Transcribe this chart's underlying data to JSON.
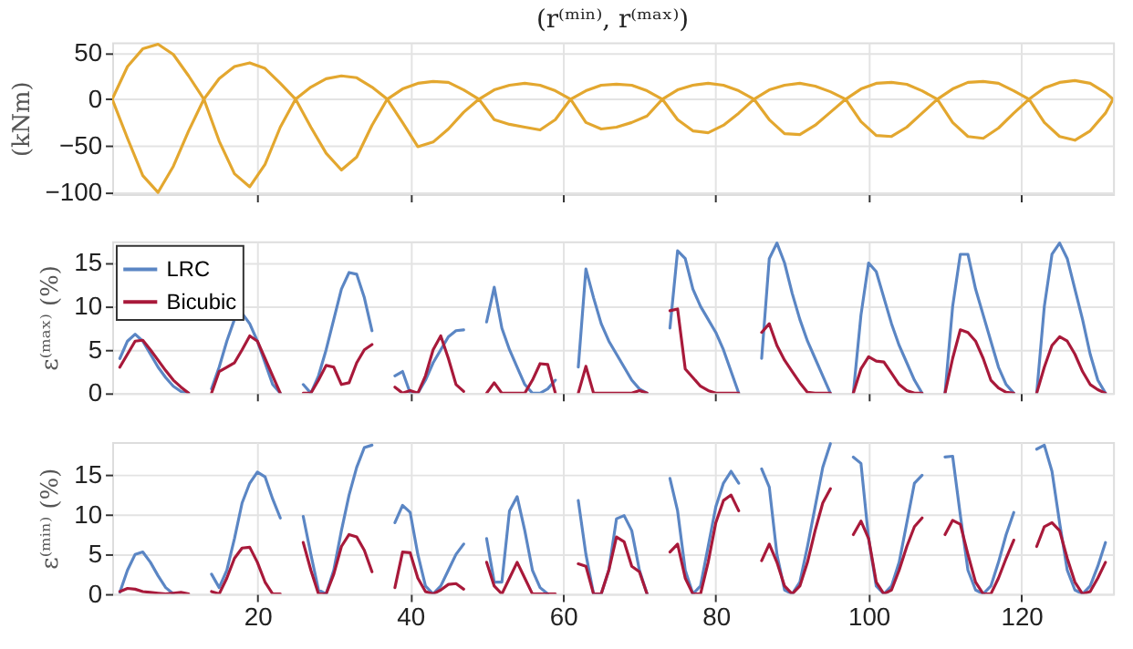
{
  "chart_data": [
    {
      "type": "line",
      "title": "(r⁽ᵐⁱⁿ⁾, r⁽ᵐᵃˣ⁾)",
      "ylabel": "(kNm)",
      "xlim": [
        1,
        132
      ],
      "xticks": [
        20,
        40,
        60,
        80,
        100,
        120
      ],
      "ylim": [
        -102,
        61
      ],
      "yticks": [
        -100,
        -50,
        0,
        50
      ],
      "grid": true,
      "tick_labels": "y",
      "x": [
        1,
        3,
        5,
        7,
        9,
        11,
        13,
        15,
        17,
        19,
        21,
        23,
        25,
        27,
        29,
        31,
        33,
        35,
        37,
        39,
        41,
        43,
        45,
        47,
        49,
        51,
        53,
        55,
        57,
        59,
        61,
        63,
        65,
        67,
        69,
        71,
        73,
        75,
        77,
        79,
        81,
        83,
        85,
        87,
        89,
        91,
        93,
        95,
        97,
        99,
        101,
        103,
        105,
        107,
        109,
        111,
        113,
        115,
        117,
        119,
        121,
        123,
        125,
        127,
        129,
        131,
        132
      ],
      "series": [
        {
          "color": "#e3a72f",
          "values": [
            0,
            35,
            54,
            59,
            48,
            25,
            0,
            22,
            35,
            39,
            33,
            17,
            0,
            13,
            22,
            25,
            23,
            13,
            0,
            11,
            17,
            19,
            18,
            10,
            0,
            10,
            15,
            17,
            15,
            9,
            0,
            9,
            15,
            16,
            15,
            9,
            0,
            10,
            15,
            17,
            15,
            9,
            0,
            10,
            15,
            17,
            14,
            8,
            0,
            11,
            17,
            18,
            16,
            9,
            0,
            11,
            18,
            19,
            17,
            9,
            0,
            12,
            18,
            20,
            17,
            7,
            0
          ]
        },
        {
          "color": "#e3a72f",
          "values": [
            0,
            -42,
            -82,
            -100,
            -72,
            -34,
            0,
            -45,
            -80,
            -94,
            -70,
            -30,
            0,
            -30,
            -58,
            -76,
            -62,
            -28,
            0,
            -25,
            -51,
            -46,
            -32,
            -14,
            0,
            -22,
            -27,
            -30,
            -33,
            -22,
            0,
            -25,
            -32,
            -30,
            -25,
            -18,
            0,
            -22,
            -34,
            -36,
            -28,
            -15,
            0,
            -22,
            -37,
            -38,
            -28,
            -14,
            0,
            -24,
            -39,
            -40,
            -30,
            -15,
            0,
            -25,
            -40,
            -42,
            -31,
            -15,
            0,
            -25,
            -40,
            -44,
            -34,
            -15,
            0
          ]
        }
      ]
    },
    {
      "type": "line",
      "ylabel": "ε⁽ᵐᵃˣ⁾ (%)",
      "xlim": [
        1,
        132
      ],
      "xticks": [
        20,
        40,
        60,
        80,
        100,
        120
      ],
      "ylim": [
        0,
        17.5
      ],
      "yticks": [
        0,
        5,
        10,
        15
      ],
      "grid": true,
      "tick_labels": "y",
      "legend": "top left",
      "x": [
        2,
        3,
        4,
        5,
        6,
        7,
        8,
        9,
        10,
        11,
        12,
        13,
        14,
        15,
        16,
        17,
        18,
        19,
        20,
        21,
        22,
        23,
        24,
        25,
        26,
        27,
        28,
        29,
        30,
        31,
        32,
        33,
        34,
        35,
        36,
        37,
        38,
        39,
        40,
        41,
        42,
        43,
        44,
        45,
        46,
        47,
        48,
        49,
        50,
        51,
        52,
        53,
        54,
        55,
        56,
        57,
        58,
        59,
        60,
        61,
        62,
        63,
        64,
        65,
        66,
        67,
        68,
        69,
        70,
        71,
        72,
        73,
        74,
        75,
        76,
        77,
        78,
        79,
        80,
        81,
        82,
        83,
        84,
        85,
        86,
        87,
        88,
        89,
        90,
        91,
        92,
        93,
        94,
        95,
        96,
        97,
        98,
        99,
        100,
        101,
        102,
        103,
        104,
        105,
        106,
        107,
        108,
        109,
        110,
        111,
        112,
        113,
        114,
        115,
        116,
        117,
        118,
        119,
        120,
        121,
        122,
        123,
        124,
        125,
        126,
        127,
        128,
        129,
        130,
        131
      ],
      "series": [
        {
          "name": "LRC",
          "color": "#5b86c4",
          "values": [
            4,
            6,
            6.8,
            6,
            4.5,
            3,
            1.8,
            0.8,
            0.2,
            0,
            null,
            null,
            0.5,
            3,
            6,
            8.5,
            9.2,
            8,
            6,
            3.5,
            1,
            0,
            null,
            null,
            1,
            0,
            2,
            5,
            8.5,
            12,
            13.9,
            13.7,
            11,
            7.2,
            null,
            null,
            2,
            2.5,
            0,
            0,
            1.5,
            3.5,
            5,
            6.5,
            7.2,
            7.3,
            null,
            null,
            8.2,
            12.2,
            7.5,
            5,
            3,
            1,
            0,
            0,
            0.5,
            1.5,
            null,
            null,
            3,
            14.3,
            11,
            8,
            6,
            4.5,
            3,
            1.5,
            0.5,
            0,
            null,
            null,
            7.5,
            16.4,
            15.5,
            12,
            10,
            8.5,
            7,
            5,
            2.5,
            0,
            null,
            null,
            4,
            15.5,
            17.3,
            15,
            11.5,
            8.5,
            6,
            4,
            2,
            0,
            null,
            null,
            0,
            9,
            15,
            14,
            11,
            8,
            5.5,
            3.5,
            1.5,
            0,
            null,
            null,
            0,
            10,
            16,
            16,
            12,
            9,
            6,
            3,
            1,
            0,
            null,
            null,
            0,
            10,
            16,
            17.3,
            15.5,
            12,
            8.5,
            4.5,
            1.5,
            0
          ]
        },
        {
          "name": "Bicubic",
          "color": "#a8193a",
          "values": [
            3,
            4.5,
            6,
            6.1,
            5,
            3.8,
            2.6,
            1.5,
            0.7,
            0,
            null,
            null,
            0,
            2.5,
            3,
            3.5,
            5,
            6.6,
            6,
            4,
            2,
            0,
            null,
            null,
            0,
            0,
            1.5,
            3.2,
            3,
            1,
            1.2,
            3.5,
            5,
            5.6,
            null,
            null,
            0.7,
            0,
            0.3,
            0,
            2,
            5,
            6.6,
            4,
            1,
            0.2,
            null,
            null,
            0,
            1.2,
            0,
            0,
            0,
            0,
            1.5,
            3.4,
            3.3,
            0,
            null,
            null,
            0,
            3.1,
            0,
            0,
            0,
            0,
            0,
            0,
            0.3,
            0,
            null,
            null,
            9.5,
            9.7,
            2.8,
            1.8,
            0.8,
            0.3,
            0,
            0,
            0,
            0,
            null,
            null,
            7,
            8,
            5.5,
            3.8,
            2.5,
            1.2,
            0.1,
            0,
            0,
            0,
            null,
            null,
            0,
            2.8,
            4.2,
            3.7,
            3.6,
            2.3,
            1,
            0.3,
            0,
            0,
            null,
            null,
            0,
            4,
            7.3,
            7,
            6,
            4,
            1.5,
            0.6,
            0.1,
            0,
            null,
            null,
            0,
            3,
            5.5,
            6.5,
            6,
            4.5,
            2.5,
            1,
            0.4,
            0
          ]
        }
      ]
    },
    {
      "type": "line",
      "ylabel": "ε⁽ᵐⁱⁿ⁾ (%)",
      "xlim": [
        1,
        132
      ],
      "xticks": [
        20,
        40,
        60,
        80,
        100,
        120
      ],
      "ylim": [
        0,
        19.2
      ],
      "yticks": [
        0,
        5,
        10,
        15
      ],
      "grid": true,
      "x": [
        2,
        3,
        4,
        5,
        6,
        7,
        8,
        9,
        10,
        11,
        12,
        13,
        14,
        15,
        16,
        17,
        18,
        19,
        20,
        21,
        22,
        23,
        24,
        25,
        26,
        27,
        28,
        29,
        30,
        31,
        32,
        33,
        34,
        35,
        36,
        37,
        38,
        39,
        40,
        41,
        42,
        43,
        44,
        45,
        46,
        47,
        48,
        49,
        50,
        51,
        52,
        53,
        54,
        55,
        56,
        57,
        58,
        59,
        60,
        61,
        62,
        63,
        64,
        65,
        66,
        67,
        68,
        69,
        70,
        71,
        72,
        73,
        74,
        75,
        76,
        77,
        78,
        79,
        80,
        81,
        82,
        83,
        84,
        85,
        86,
        87,
        88,
        89,
        90,
        91,
        92,
        93,
        94,
        95,
        96,
        97,
        98,
        99,
        100,
        101,
        102,
        103,
        104,
        105,
        106,
        107,
        108,
        109,
        110,
        111,
        112,
        113,
        114,
        115,
        116,
        117,
        118,
        119,
        120,
        121,
        122,
        123,
        124,
        125,
        126,
        127,
        128,
        129,
        130,
        131
      ],
      "series": [
        {
          "color": "#5b86c4",
          "values": [
            0.2,
            3,
            5,
            5.3,
            4,
            2.3,
            0.8,
            0,
            null,
            null,
            null,
            null,
            2.5,
            0.8,
            3,
            7,
            11.5,
            14,
            15.4,
            14.8,
            12,
            9.6,
            null,
            null,
            9.8,
            5,
            0.5,
            0,
            3,
            8,
            12.5,
            16,
            18.5,
            18.8,
            null,
            null,
            9,
            11.2,
            10.3,
            5,
            1,
            0,
            1,
            3,
            5,
            6.3,
            null,
            null,
            7,
            1.5,
            1.5,
            10.5,
            12.3,
            8,
            3,
            0.8,
            0,
            null,
            null,
            null,
            11.8,
            5,
            0,
            0,
            3,
            9.5,
            9.9,
            8,
            3,
            0,
            null,
            null,
            14.6,
            10.5,
            3,
            0,
            1,
            6,
            11,
            14,
            15.5,
            14,
            null,
            null,
            15.8,
            13.5,
            5,
            0.5,
            0,
            1.5,
            6,
            11,
            16,
            19,
            null,
            null,
            17.3,
            16.5,
            7,
            1,
            0,
            1,
            4,
            9,
            14,
            15,
            null,
            null,
            17.3,
            17.4,
            10,
            3,
            0.5,
            0,
            1,
            4,
            7.5,
            10.3,
            null,
            null,
            18.3,
            18.8,
            15.5,
            9,
            3,
            0.5,
            0,
            1,
            3.5,
            6.5
          ]
        },
        {
          "color": "#a8193a",
          "values": [
            0.3,
            0.7,
            0.6,
            0.3,
            0.2,
            0.1,
            0,
            0.1,
            0.2,
            0,
            null,
            null,
            0.3,
            0,
            2,
            4.5,
            5.8,
            5.9,
            4,
            1.5,
            0,
            0,
            null,
            null,
            6.5,
            3,
            0,
            0,
            2.5,
            6,
            7.5,
            7.2,
            5.5,
            2.8,
            null,
            null,
            0.8,
            5.3,
            5.2,
            2,
            0.3,
            0,
            0.5,
            1.2,
            1.3,
            0.6,
            null,
            null,
            4,
            1,
            0,
            2,
            4,
            2,
            0,
            0,
            0,
            0,
            null,
            null,
            3.8,
            3.5,
            0,
            0,
            3,
            7.2,
            6.6,
            3.5,
            2.8,
            0,
            null,
            null,
            5.3,
            6.3,
            2,
            0,
            0,
            4,
            9,
            11.8,
            12.5,
            10.5,
            null,
            null,
            4.2,
            6.3,
            4,
            1,
            0,
            1,
            4,
            8,
            11.5,
            13.3,
            null,
            null,
            7.5,
            9.2,
            7,
            1.5,
            0,
            0.5,
            3,
            6,
            8.5,
            9.6,
            null,
            null,
            7.5,
            9.3,
            8.8,
            5,
            1.5,
            0,
            0,
            2,
            4.5,
            6.8,
            null,
            null,
            6,
            8.5,
            9,
            8,
            4.5,
            1.5,
            0,
            0.3,
            2,
            4
          ]
        }
      ]
    }
  ]
}
